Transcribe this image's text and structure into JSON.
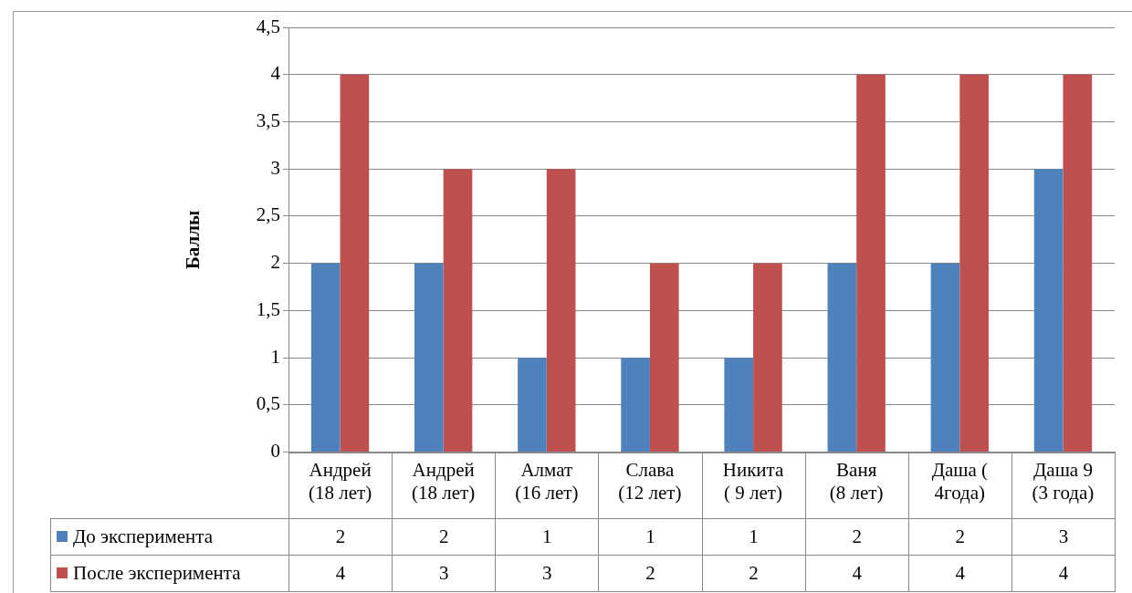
{
  "chart_data": {
    "type": "bar",
    "ylabel": "Баллы",
    "categories": [
      "Андрей\n(18 лет)",
      "Андрей\n(18 лет)",
      "Алмат\n(16 лет)",
      "Слава\n(12 лет)",
      "Никита\n( 9 лет)",
      "Ваня\n(8 лет)",
      "Даша (\n4года)",
      "Даша 9\n(3 года)"
    ],
    "series": [
      {
        "name": "До эксперимента",
        "color": "#4f81bd",
        "values": [
          2,
          2,
          1,
          1,
          1,
          2,
          2,
          3
        ]
      },
      {
        "name": "После эксперимента",
        "color": "#c0504d",
        "values": [
          4,
          3,
          3,
          2,
          2,
          4,
          4,
          4
        ]
      }
    ],
    "ylim": [
      0,
      4.5
    ],
    "yticks": [
      0,
      {
        "value": 0.5,
        "label": "0,5"
      },
      1,
      {
        "value": 1.5,
        "label": "1,5"
      },
      2,
      {
        "value": 2.5,
        "label": "2,5"
      },
      3,
      {
        "value": 3.5,
        "label": "3,5"
      },
      4,
      {
        "value": 4.5,
        "label": "4,5"
      }
    ],
    "grid": "y",
    "legend": "bottom",
    "data_labels": true
  }
}
